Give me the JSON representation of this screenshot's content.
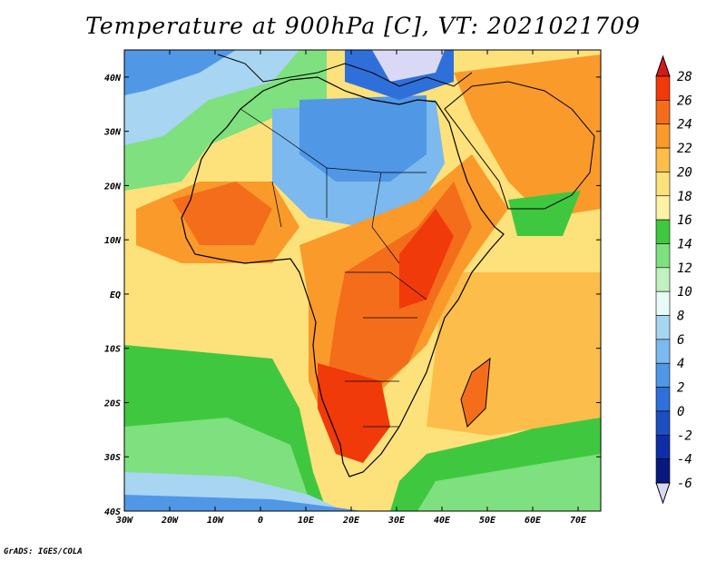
{
  "title": "Temperature at 900hPa [C], VT: 2021021709",
  "credit": "GrADS: IGES/COLA",
  "map": {
    "lon_ticks": [
      "30W",
      "20W",
      "10W",
      "0",
      "10E",
      "20E",
      "30E",
      "40E",
      "50E",
      "60E",
      "70E"
    ],
    "lat_ticks": [
      "40N",
      "30N",
      "20N",
      "10N",
      "EQ",
      "10S",
      "20S",
      "30S",
      "40S"
    ],
    "extent": {
      "lon_min": -30,
      "lon_max": 75,
      "lat_min": -40,
      "lat_max": 45
    }
  },
  "colorbar": {
    "levels": [
      "28",
      "26",
      "24",
      "22",
      "20",
      "18",
      "16",
      "14",
      "12",
      "10",
      "8",
      "6",
      "4",
      "2",
      "0",
      "-2",
      "-4",
      "-6"
    ],
    "colors": [
      "#d7191c",
      "#f03a0a",
      "#f46d1a",
      "#f99a2b",
      "#fcbd4a",
      "#fde17a",
      "#fdf3a6",
      "#3fc83f",
      "#7ee07e",
      "#bff2bf",
      "#e8fbf8",
      "#a7d5f2",
      "#7bb9ee",
      "#5097e6",
      "#2f6fd9",
      "#1d4fc3",
      "#0f2da6",
      "#081a80",
      "#d9d9f5"
    ],
    "top_color": "#d7191c",
    "bottom_color": "#d9d9f5"
  }
}
